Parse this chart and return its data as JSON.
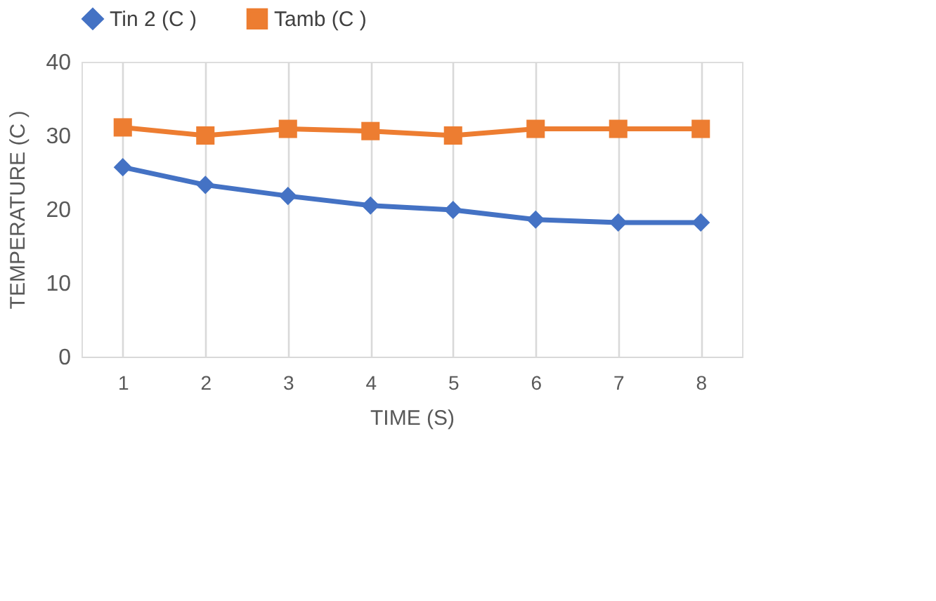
{
  "chart_data": {
    "type": "line",
    "xlabel": "TIME (S)",
    "ylabel": "TEMPERATURE (C )",
    "categories": [
      "1",
      "2",
      "3",
      "4",
      "5",
      "6",
      "7",
      "8"
    ],
    "series": [
      {
        "name": "Tin 2 (C )",
        "color": "#4472c4",
        "marker": "diamond",
        "values": [
          25.7,
          23.3,
          21.8,
          20.5,
          19.9,
          18.6,
          18.2,
          18.2
        ]
      },
      {
        "name": "Tamb (C )",
        "color": "#ed7d31",
        "marker": "square",
        "values": [
          31.1,
          30.0,
          30.9,
          30.6,
          30.0,
          30.9,
          30.9,
          30.9
        ]
      }
    ],
    "ylim": [
      0,
      40
    ],
    "yticks": [
      0,
      10,
      20,
      30,
      40
    ],
    "grid": "x",
    "legend": "top"
  }
}
